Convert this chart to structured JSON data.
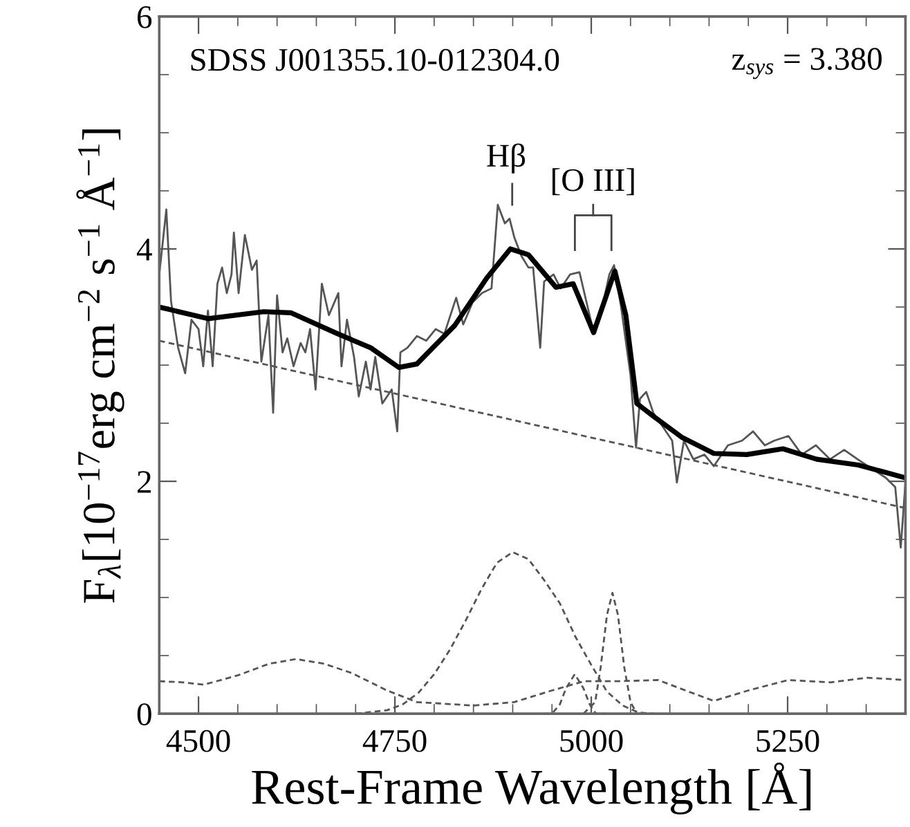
{
  "chart_data": {
    "type": "line",
    "xlabel": "Rest-Frame Wavelength [Å]",
    "ylabel": "F$_{λ}$[10$^{−17}$erg cm$^{−2}$ s$^{−1}$ Å$^{−1}$]",
    "xlim": [
      4450,
      5400
    ],
    "ylim": [
      0,
      6
    ],
    "xticks": [
      {
        "value": 4450,
        "label": null
      },
      4500,
      {
        "value": 4550,
        "label": null
      },
      {
        "value": 4600,
        "label": null
      },
      {
        "value": 4650,
        "label": null
      },
      {
        "value": 4700,
        "label": null
      },
      4750,
      {
        "value": 4800,
        "label": null
      },
      {
        "value": 4850,
        "label": null
      },
      {
        "value": 4900,
        "label": null
      },
      {
        "value": 4950,
        "label": null
      },
      5000,
      {
        "value": 5050,
        "label": null
      },
      {
        "value": 5100,
        "label": null
      },
      {
        "value": 5150,
        "label": null
      },
      {
        "value": 5200,
        "label": null
      },
      5250,
      {
        "value": 5300,
        "label": null
      },
      {
        "value": 5350,
        "label": null
      }
    ],
    "yticks": [
      0,
      {
        "value": 0.5,
        "label": null
      },
      {
        "value": 1,
        "label": null
      },
      {
        "value": 1.5,
        "label": null
      },
      2,
      {
        "value": 2.5,
        "label": null
      },
      {
        "value": 3,
        "label": null
      },
      {
        "value": 3.5,
        "label": null
      },
      4,
      {
        "value": 4.5,
        "label": null
      },
      {
        "value": 5,
        "label": null
      },
      {
        "value": 5.5,
        "label": null
      },
      6
    ],
    "annotations": [
      "SDSS J001355.10-012304.0",
      "z$_{sys}$ = 3.380",
      "Hβ",
      "[O III]"
    ],
    "series": [
      {
        "color": "#555555",
        "line_style": "solid",
        "x": [
          4450,
          4459,
          4465,
          4474,
          4483,
          4491,
          4500,
          4506,
          4512,
          4518,
          4524,
          4530,
          4536,
          4542,
          4545,
          4551,
          4559,
          4568,
          4574,
          4580,
          4589,
          4595,
          4600,
          4607,
          4613,
          4621,
          4630,
          4636,
          4642,
          4649,
          4657,
          4666,
          4678,
          4682,
          4689,
          4698,
          4704,
          4713,
          4719,
          4725,
          4734,
          4746,
          4753,
          4757,
          4766,
          4778,
          4790,
          4802,
          4813,
          4828,
          4837,
          4849,
          4861,
          4873,
          4881,
          4890,
          4896,
          4902,
          4911,
          4920,
          4926,
          4935,
          4940,
          4952,
          4961,
          4973,
          4985,
          4994,
          5002,
          5014,
          5023,
          5029,
          5038,
          5050,
          5057,
          5062,
          5070,
          5079,
          5091,
          5103,
          5109,
          5118,
          5130,
          5144,
          5156,
          5174,
          5192,
          5206,
          5221,
          5233,
          5251,
          5268,
          5286,
          5304,
          5322,
          5339,
          5357,
          5375,
          5387,
          5394,
          5400
        ],
        "values": [
          3.78,
          4.34,
          3.55,
          3.15,
          2.93,
          3.39,
          3.31,
          2.99,
          3.47,
          2.99,
          3.7,
          3.84,
          3.62,
          3.78,
          4.14,
          3.62,
          4.12,
          3.82,
          3.9,
          3.03,
          3.43,
          2.59,
          3.6,
          3.11,
          3.23,
          2.99,
          3.19,
          3.11,
          3.31,
          2.79,
          3.7,
          3.43,
          3.62,
          2.99,
          3.39,
          3.07,
          2.73,
          3.03,
          2.79,
          3.07,
          2.67,
          2.79,
          2.43,
          3.11,
          3.15,
          3.25,
          3.21,
          3.31,
          3.27,
          3.58,
          3.35,
          3.54,
          3.62,
          3.66,
          4.38,
          4.22,
          4.26,
          4.1,
          3.94,
          3.84,
          3.84,
          3.15,
          3.72,
          3.78,
          3.66,
          3.78,
          3.8,
          3.54,
          3.31,
          3.5,
          3.78,
          3.86,
          3.5,
          2.91,
          2.29,
          2.71,
          2.77,
          2.59,
          2.47,
          2.35,
          1.99,
          2.35,
          2.19,
          2.23,
          2.13,
          2.31,
          2.35,
          2.43,
          2.31,
          2.35,
          2.39,
          2.23,
          2.31,
          2.19,
          2.27,
          2.19,
          2.11,
          2.03,
          1.95,
          1.43,
          1.99
        ]
      },
      {
        "color": "#000000",
        "line_style": "solid",
        "x": [
          4450,
          4512,
          4583,
          4618,
          4677,
          4719,
          4755,
          4778,
          4826,
          4867,
          4897,
          4920,
          4955,
          4977,
          5003,
          5030,
          5044,
          5058,
          5079,
          5115,
          5156,
          5198,
          5244,
          5287,
          5340,
          5400
        ],
        "values": [
          3.5,
          3.4,
          3.46,
          3.45,
          3.27,
          3.15,
          2.98,
          3.01,
          3.34,
          3.75,
          4.0,
          3.95,
          3.67,
          3.7,
          3.28,
          3.81,
          3.43,
          2.67,
          2.56,
          2.38,
          2.24,
          2.23,
          2.28,
          2.19,
          2.14,
          2.03
        ]
      },
      {
        "color": "#555555",
        "line_style": "dashed",
        "x": [
          4450,
          5400
        ],
        "values": [
          3.21,
          1.77
        ]
      },
      {
        "color": "#555555",
        "line_style": "dashed",
        "x": [
          4700,
          4740,
          4760,
          4780,
          4800,
          4820,
          4840,
          4860,
          4880,
          4900,
          4920,
          4940,
          4960,
          4980,
          5000,
          5020,
          5040,
          5060,
          5080
        ],
        "values": [
          0,
          0.03,
          0.08,
          0.18,
          0.34,
          0.55,
          0.8,
          1.07,
          1.3,
          1.39,
          1.33,
          1.15,
          0.95,
          0.66,
          0.42,
          0.19,
          0.07,
          0.01,
          0
        ]
      },
      {
        "color": "#555555",
        "line_style": "dashed",
        "x": [
          4990,
          5005,
          5012,
          5020,
          5027,
          5034,
          5042,
          5050,
          5058,
          5070
        ],
        "values": [
          0,
          0.1,
          0.4,
          0.85,
          1.04,
          0.85,
          0.4,
          0.1,
          0,
          0
        ]
      },
      {
        "color": "#555555",
        "line_style": "dashed",
        "x": [
          4940,
          4950,
          4960,
          4968,
          4979,
          4990,
          4998,
          5006,
          5020
        ],
        "values": [
          0,
          0,
          0.08,
          0.22,
          0.34,
          0.22,
          0.08,
          0,
          0
        ]
      },
      {
        "color": "#555555",
        "line_style": "dashed",
        "x": [
          4450,
          4480,
          4507,
          4550,
          4590,
          4624,
          4660,
          4695,
          4740,
          4778,
          4850,
          4902,
          4950,
          4991,
          5038,
          5085,
          5120,
          5156,
          5200,
          5251,
          5305,
          5351,
          5400
        ],
        "values": [
          0.28,
          0.27,
          0.25,
          0.33,
          0.43,
          0.47,
          0.43,
          0.35,
          0.2,
          0.1,
          0.07,
          0.1,
          0.2,
          0.28,
          0.28,
          0.29,
          0.2,
          0.11,
          0.2,
          0.29,
          0.27,
          0.31,
          0.29
        ]
      }
    ]
  }
}
